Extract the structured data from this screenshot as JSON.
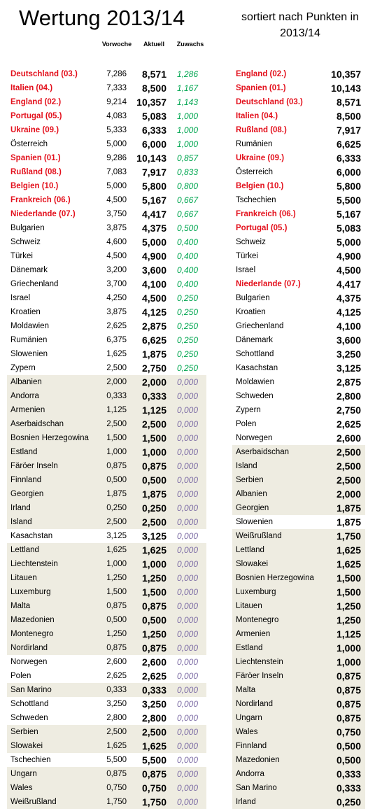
{
  "header": {
    "title": "Wertung 2013/14",
    "subtitle": "sortiert nach Punkten in 2013/14",
    "col_vorwoche": "Vorwoche",
    "col_aktuell": "Aktuell",
    "col_zuwachs": "Zuwachs"
  },
  "left_rows": [
    {
      "name": "Deutschland (03.)",
      "vor": "7,286",
      "akt": "8,571",
      "zu": "1,286",
      "red": true,
      "shaded": false
    },
    {
      "name": "Italien (04.)",
      "vor": "7,333",
      "akt": "8,500",
      "zu": "1,167",
      "red": true,
      "shaded": false
    },
    {
      "name": "England (02.)",
      "vor": "9,214",
      "akt": "10,357",
      "zu": "1,143",
      "red": true,
      "shaded": false
    },
    {
      "name": "Portugal (05.)",
      "vor": "4,083",
      "akt": "5,083",
      "zu": "1,000",
      "red": true,
      "shaded": false
    },
    {
      "name": "Ukraine (09.)",
      "vor": "5,333",
      "akt": "6,333",
      "zu": "1,000",
      "red": true,
      "shaded": false
    },
    {
      "name": "Österreich",
      "vor": "5,000",
      "akt": "6,000",
      "zu": "1,000",
      "red": false,
      "shaded": false
    },
    {
      "name": "Spanien (01.)",
      "vor": "9,286",
      "akt": "10,143",
      "zu": "0,857",
      "red": true,
      "shaded": false
    },
    {
      "name": "Rußland (08.)",
      "vor": "7,083",
      "akt": "7,917",
      "zu": "0,833",
      "red": true,
      "shaded": false
    },
    {
      "name": "Belgien (10.)",
      "vor": "5,000",
      "akt": "5,800",
      "zu": "0,800",
      "red": true,
      "shaded": false
    },
    {
      "name": "Frankreich (06.)",
      "vor": "4,500",
      "akt": "5,167",
      "zu": "0,667",
      "red": true,
      "shaded": false
    },
    {
      "name": "Niederlande (07.)",
      "vor": "3,750",
      "akt": "4,417",
      "zu": "0,667",
      "red": true,
      "shaded": false
    },
    {
      "name": "Bulgarien",
      "vor": "3,875",
      "akt": "4,375",
      "zu": "0,500",
      "red": false,
      "shaded": false
    },
    {
      "name": "Schweiz",
      "vor": "4,600",
      "akt": "5,000",
      "zu": "0,400",
      "red": false,
      "shaded": false
    },
    {
      "name": "Türkei",
      "vor": "4,500",
      "akt": "4,900",
      "zu": "0,400",
      "red": false,
      "shaded": false
    },
    {
      "name": "Dänemark",
      "vor": "3,200",
      "akt": "3,600",
      "zu": "0,400",
      "red": false,
      "shaded": false
    },
    {
      "name": "Griechenland",
      "vor": "3,700",
      "akt": "4,100",
      "zu": "0,400",
      "red": false,
      "shaded": false
    },
    {
      "name": "Israel",
      "vor": "4,250",
      "akt": "4,500",
      "zu": "0,250",
      "red": false,
      "shaded": false
    },
    {
      "name": "Kroatien",
      "vor": "3,875",
      "akt": "4,125",
      "zu": "0,250",
      "red": false,
      "shaded": false
    },
    {
      "name": "Moldawien",
      "vor": "2,625",
      "akt": "2,875",
      "zu": "0,250",
      "red": false,
      "shaded": false
    },
    {
      "name": "Rumänien",
      "vor": "6,375",
      "akt": "6,625",
      "zu": "0,250",
      "red": false,
      "shaded": false
    },
    {
      "name": "Slowenien",
      "vor": "1,625",
      "akt": "1,875",
      "zu": "0,250",
      "red": false,
      "shaded": false
    },
    {
      "name": "Zypern",
      "vor": "2,500",
      "akt": "2,750",
      "zu": "0,250",
      "red": false,
      "shaded": false
    },
    {
      "name": "Albanien",
      "vor": "2,000",
      "akt": "2,000",
      "zu": "0,000",
      "red": false,
      "shaded": true
    },
    {
      "name": "Andorra",
      "vor": "0,333",
      "akt": "0,333",
      "zu": "0,000",
      "red": false,
      "shaded": true
    },
    {
      "name": "Armenien",
      "vor": "1,125",
      "akt": "1,125",
      "zu": "0,000",
      "red": false,
      "shaded": true
    },
    {
      "name": "Aserbaidschan",
      "vor": "2,500",
      "akt": "2,500",
      "zu": "0,000",
      "red": false,
      "shaded": true
    },
    {
      "name": "Bosnien Herzegowina",
      "vor": "1,500",
      "akt": "1,500",
      "zu": "0,000",
      "red": false,
      "shaded": true
    },
    {
      "name": "Estland",
      "vor": "1,000",
      "akt": "1,000",
      "zu": "0,000",
      "red": false,
      "shaded": true
    },
    {
      "name": "Färöer Inseln",
      "vor": "0,875",
      "akt": "0,875",
      "zu": "0,000",
      "red": false,
      "shaded": true
    },
    {
      "name": "Finnland",
      "vor": "0,500",
      "akt": "0,500",
      "zu": "0,000",
      "red": false,
      "shaded": true
    },
    {
      "name": "Georgien",
      "vor": "1,875",
      "akt": "1,875",
      "zu": "0,000",
      "red": false,
      "shaded": true
    },
    {
      "name": "Irland",
      "vor": "0,250",
      "akt": "0,250",
      "zu": "0,000",
      "red": false,
      "shaded": true
    },
    {
      "name": "Island",
      "vor": "2,500",
      "akt": "2,500",
      "zu": "0,000",
      "red": false,
      "shaded": true
    },
    {
      "name": "Kasachstan",
      "vor": "3,125",
      "akt": "3,125",
      "zu": "0,000",
      "red": false,
      "shaded": false
    },
    {
      "name": "Lettland",
      "vor": "1,625",
      "akt": "1,625",
      "zu": "0,000",
      "red": false,
      "shaded": true
    },
    {
      "name": "Liechtenstein",
      "vor": "1,000",
      "akt": "1,000",
      "zu": "0,000",
      "red": false,
      "shaded": true
    },
    {
      "name": "Litauen",
      "vor": "1,250",
      "akt": "1,250",
      "zu": "0,000",
      "red": false,
      "shaded": true
    },
    {
      "name": "Luxemburg",
      "vor": "1,500",
      "akt": "1,500",
      "zu": "0,000",
      "red": false,
      "shaded": true
    },
    {
      "name": "Malta",
      "vor": "0,875",
      "akt": "0,875",
      "zu": "0,000",
      "red": false,
      "shaded": true
    },
    {
      "name": "Mazedonien",
      "vor": "0,500",
      "akt": "0,500",
      "zu": "0,000",
      "red": false,
      "shaded": true
    },
    {
      "name": "Montenegro",
      "vor": "1,250",
      "akt": "1,250",
      "zu": "0,000",
      "red": false,
      "shaded": true
    },
    {
      "name": "Nordirland",
      "vor": "0,875",
      "akt": "0,875",
      "zu": "0,000",
      "red": false,
      "shaded": true
    },
    {
      "name": "Norwegen",
      "vor": "2,600",
      "akt": "2,600",
      "zu": "0,000",
      "red": false,
      "shaded": false
    },
    {
      "name": "Polen",
      "vor": "2,625",
      "akt": "2,625",
      "zu": "0,000",
      "red": false,
      "shaded": false
    },
    {
      "name": "San Marino",
      "vor": "0,333",
      "akt": "0,333",
      "zu": "0,000",
      "red": false,
      "shaded": true
    },
    {
      "name": "Schottland",
      "vor": "3,250",
      "akt": "3,250",
      "zu": "0,000",
      "red": false,
      "shaded": false
    },
    {
      "name": "Schweden",
      "vor": "2,800",
      "akt": "2,800",
      "zu": "0,000",
      "red": false,
      "shaded": false
    },
    {
      "name": "Serbien",
      "vor": "2,500",
      "akt": "2,500",
      "zu": "0,000",
      "red": false,
      "shaded": true
    },
    {
      "name": "Slowakei",
      "vor": "1,625",
      "akt": "1,625",
      "zu": "0,000",
      "red": false,
      "shaded": true
    },
    {
      "name": "Tschechien",
      "vor": "5,500",
      "akt": "5,500",
      "zu": "0,000",
      "red": false,
      "shaded": false
    },
    {
      "name": "Ungarn",
      "vor": "0,875",
      "akt": "0,875",
      "zu": "0,000",
      "red": false,
      "shaded": true
    },
    {
      "name": "Wales",
      "vor": "0,750",
      "akt": "0,750",
      "zu": "0,000",
      "red": false,
      "shaded": true
    },
    {
      "name": "Weißrußland",
      "vor": "1,750",
      "akt": "1,750",
      "zu": "0,000",
      "red": false,
      "shaded": true
    }
  ],
  "right_rows": [
    {
      "name": "England (02.)",
      "pts": "10,357",
      "red": true,
      "shaded": false
    },
    {
      "name": "Spanien (01.)",
      "pts": "10,143",
      "red": true,
      "shaded": false
    },
    {
      "name": "Deutschland (03.)",
      "pts": "8,571",
      "red": true,
      "shaded": false
    },
    {
      "name": "Italien (04.)",
      "pts": "8,500",
      "red": true,
      "shaded": false
    },
    {
      "name": "Rußland (08.)",
      "pts": "7,917",
      "red": true,
      "shaded": false
    },
    {
      "name": "Rumänien",
      "pts": "6,625",
      "red": false,
      "shaded": false
    },
    {
      "name": "Ukraine (09.)",
      "pts": "6,333",
      "red": true,
      "shaded": false
    },
    {
      "name": "Österreich",
      "pts": "6,000",
      "red": false,
      "shaded": false
    },
    {
      "name": "Belgien (10.)",
      "pts": "5,800",
      "red": true,
      "shaded": false
    },
    {
      "name": "Tschechien",
      "pts": "5,500",
      "red": false,
      "shaded": false
    },
    {
      "name": "Frankreich (06.)",
      "pts": "5,167",
      "red": true,
      "shaded": false
    },
    {
      "name": "Portugal (05.)",
      "pts": "5,083",
      "red": true,
      "shaded": false
    },
    {
      "name": "Schweiz",
      "pts": "5,000",
      "red": false,
      "shaded": false
    },
    {
      "name": "Türkei",
      "pts": "4,900",
      "red": false,
      "shaded": false
    },
    {
      "name": "Israel",
      "pts": "4,500",
      "red": false,
      "shaded": false
    },
    {
      "name": "Niederlande (07.)",
      "pts": "4,417",
      "red": true,
      "shaded": false
    },
    {
      "name": "Bulgarien",
      "pts": "4,375",
      "red": false,
      "shaded": false
    },
    {
      "name": "Kroatien",
      "pts": "4,125",
      "red": false,
      "shaded": false
    },
    {
      "name": "Griechenland",
      "pts": "4,100",
      "red": false,
      "shaded": false
    },
    {
      "name": "Dänemark",
      "pts": "3,600",
      "red": false,
      "shaded": false
    },
    {
      "name": "Schottland",
      "pts": "3,250",
      "red": false,
      "shaded": false
    },
    {
      "name": "Kasachstan",
      "pts": "3,125",
      "red": false,
      "shaded": false
    },
    {
      "name": "Moldawien",
      "pts": "2,875",
      "red": false,
      "shaded": false
    },
    {
      "name": "Schweden",
      "pts": "2,800",
      "red": false,
      "shaded": false
    },
    {
      "name": "Zypern",
      "pts": "2,750",
      "red": false,
      "shaded": false
    },
    {
      "name": "Polen",
      "pts": "2,625",
      "red": false,
      "shaded": false
    },
    {
      "name": "Norwegen",
      "pts": "2,600",
      "red": false,
      "shaded": false
    },
    {
      "name": "Aserbaidschan",
      "pts": "2,500",
      "red": false,
      "shaded": true
    },
    {
      "name": "Island",
      "pts": "2,500",
      "red": false,
      "shaded": true
    },
    {
      "name": "Serbien",
      "pts": "2,500",
      "red": false,
      "shaded": true
    },
    {
      "name": "Albanien",
      "pts": "2,000",
      "red": false,
      "shaded": true
    },
    {
      "name": "Georgien",
      "pts": "1,875",
      "red": false,
      "shaded": true
    },
    {
      "name": "Slowenien",
      "pts": "1,875",
      "red": false,
      "shaded": false
    },
    {
      "name": "Weißrußland",
      "pts": "1,750",
      "red": false,
      "shaded": true
    },
    {
      "name": "Lettland",
      "pts": "1,625",
      "red": false,
      "shaded": true
    },
    {
      "name": "Slowakei",
      "pts": "1,625",
      "red": false,
      "shaded": true
    },
    {
      "name": "Bosnien Herzegowina",
      "pts": "1,500",
      "red": false,
      "shaded": true
    },
    {
      "name": "Luxemburg",
      "pts": "1,500",
      "red": false,
      "shaded": true
    },
    {
      "name": "Litauen",
      "pts": "1,250",
      "red": false,
      "shaded": true
    },
    {
      "name": "Montenegro",
      "pts": "1,250",
      "red": false,
      "shaded": true
    },
    {
      "name": "Armenien",
      "pts": "1,125",
      "red": false,
      "shaded": true
    },
    {
      "name": "Estland",
      "pts": "1,000",
      "red": false,
      "shaded": true
    },
    {
      "name": "Liechtenstein",
      "pts": "1,000",
      "red": false,
      "shaded": true
    },
    {
      "name": "Färöer Inseln",
      "pts": "0,875",
      "red": false,
      "shaded": true
    },
    {
      "name": "Malta",
      "pts": "0,875",
      "red": false,
      "shaded": true
    },
    {
      "name": "Nordirland",
      "pts": "0,875",
      "red": false,
      "shaded": true
    },
    {
      "name": "Ungarn",
      "pts": "0,875",
      "red": false,
      "shaded": true
    },
    {
      "name": "Wales",
      "pts": "0,750",
      "red": false,
      "shaded": true
    },
    {
      "name": "Finnland",
      "pts": "0,500",
      "red": false,
      "shaded": true
    },
    {
      "name": "Mazedonien",
      "pts": "0,500",
      "red": false,
      "shaded": true
    },
    {
      "name": "Andorra",
      "pts": "0,333",
      "red": false,
      "shaded": true
    },
    {
      "name": "San Marino",
      "pts": "0,333",
      "red": false,
      "shaded": true
    },
    {
      "name": "Irland",
      "pts": "0,250",
      "red": false,
      "shaded": true
    }
  ]
}
